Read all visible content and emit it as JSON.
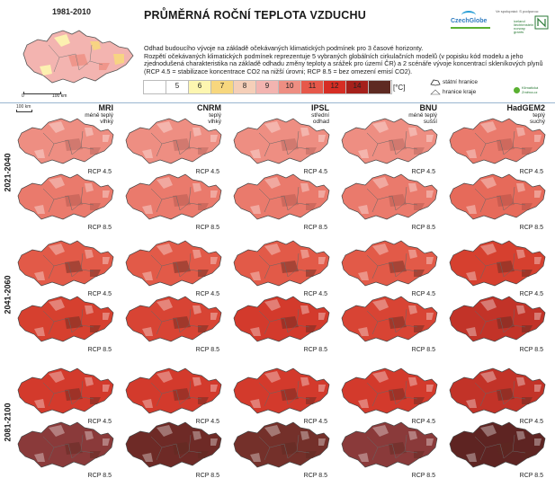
{
  "reference": {
    "period": "1981-2010",
    "scale_start": "0",
    "scale_end": "100 km",
    "fill_color": "#f3b4b0"
  },
  "title": "PRŮMĚRNÁ ROČNÍ TEPLOTA VZDUCHU",
  "logos": {
    "main": "CzechGlobe",
    "note": "Ve spolupráci: S podporou:",
    "eea_text": "iceland liechtenstein norway grants",
    "klimaticka": "Klimatická Změna.cz"
  },
  "description": [
    "Odhad budoucího vývoje na základě očekávaných klimatických podmínek pro 3 časové horizonty.",
    "Rozpětí očekávaných klimatických podmínek reprezentuje 5 vybraných globálních cirkulačních modelů (v popisku kód modelu a jeho zjednodušená charakteristika na základě odhadu změny teploty a srážek pro území ČR) a 2 scénáře vývoje koncentrací skleníkových plynů (RCP 4.5 = stabilizace koncentrace CO2 na nižší úrovni; RCP 8.5 = bez omezení emisí CO2)."
  ],
  "legend": {
    "classes": [
      {
        "label": "",
        "color": "#ffffff"
      },
      {
        "label": "5",
        "color": "#ffffff"
      },
      {
        "label": "6",
        "color": "#fdf6b0"
      },
      {
        "label": "7",
        "color": "#f7d77e"
      },
      {
        "label": "8",
        "color": "#f5cfb8"
      },
      {
        "label": "9",
        "color": "#f3b4b0"
      },
      {
        "label": "10",
        "color": "#ee8e82"
      },
      {
        "label": "11",
        "color": "#e6584a"
      },
      {
        "label": "12",
        "color": "#d62d24"
      },
      {
        "label": "14",
        "color": "#a5201b"
      },
      {
        "label": "",
        "color": "#5e2a22"
      }
    ],
    "unit": "[°C]"
  },
  "boundaries": {
    "state": "státní hranice",
    "region": "hranice kraje"
  },
  "scale2": "100 km",
  "columns": [
    {
      "name": "MRI",
      "desc1": "méně teplý",
      "desc2": "vlhký"
    },
    {
      "name": "CNRM",
      "desc1": "teplý",
      "desc2": "vlhký"
    },
    {
      "name": "IPSL",
      "desc1": "střední",
      "desc2": "odhad"
    },
    {
      "name": "BNU",
      "desc1": "méně teplý",
      "desc2": "sušší"
    },
    {
      "name": "HadGEM2",
      "desc1": "teplý",
      "desc2": "suchý"
    }
  ],
  "periods": [
    "2021-2040",
    "2041-2060",
    "2081-2100"
  ],
  "rcp": [
    "RCP 4.5",
    "RCP 8.5"
  ],
  "map_fills": [
    [
      "#ee8e82",
      "#ee8e82",
      "#ee8e82",
      "#ee8e82",
      "#ea7a6c"
    ],
    [
      "#ea7a6c",
      "#ea7a6c",
      "#ea7a6c",
      "#ea7a6c",
      "#e66a5a"
    ],
    [
      "#e25a48",
      "#e25a48",
      "#e25a48",
      "#e25a48",
      "#d6402f"
    ],
    [
      "#d6402f",
      "#d84434",
      "#d33a2c",
      "#d84434",
      "#c23328"
    ],
    [
      "#d33a2c",
      "#d33a2c",
      "#d33a2c",
      "#d33a2c",
      "#c23328"
    ],
    [
      "#8a3a3a",
      "#6e2a26",
      "#74302a",
      "#8a3a3a",
      "#5e2422"
    ]
  ]
}
